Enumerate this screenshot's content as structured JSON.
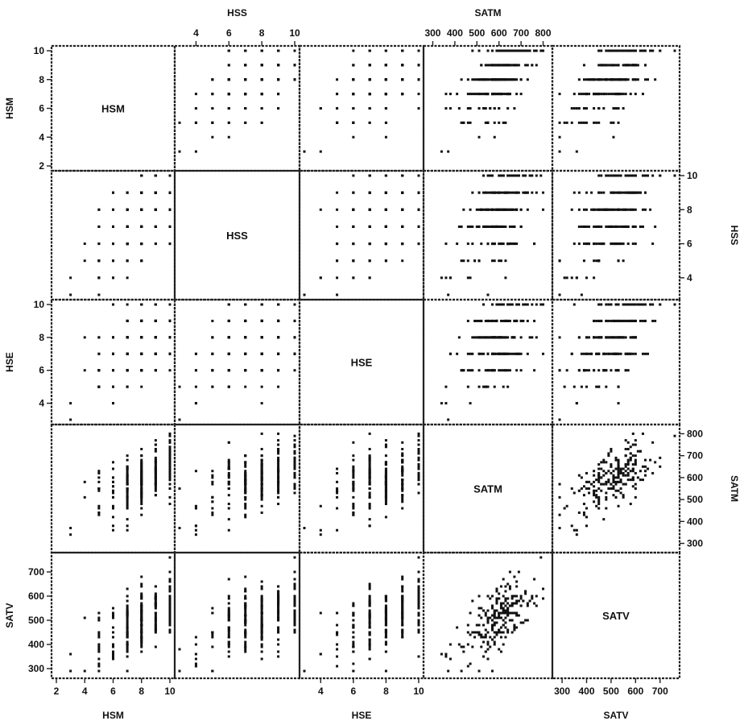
{
  "chart_data": {
    "type": "scatter",
    "subtype": "scatterplot-matrix",
    "variables": [
      "HSM",
      "HSS",
      "HSE",
      "SATM",
      "SATV"
    ],
    "diagonal_labels": [
      "HSM",
      "HSS",
      "HSE",
      "SATM",
      "SATV"
    ],
    "ranges": {
      "HSM": [
        2,
        10
      ],
      "HSS": [
        3,
        10
      ],
      "HSE": [
        3,
        10
      ],
      "SATM": [
        280,
        820
      ],
      "SATV": [
        280,
        760
      ]
    },
    "ticks": {
      "HSM": [
        "2",
        "4",
        "6",
        "8",
        "10"
      ],
      "HSS": [
        "4",
        "6",
        "8",
        "10"
      ],
      "HSE": [
        "4",
        "6",
        "8",
        "10"
      ],
      "SATM": [
        "300",
        "400",
        "500",
        "600",
        "700",
        "800"
      ],
      "SATV": [
        "300",
        "400",
        "500",
        "600",
        "700"
      ]
    },
    "axes_labeled": {
      "top": [
        "HSS",
        "SATM"
      ],
      "bottom": [
        "HSM",
        "HSE",
        "SATV"
      ],
      "left": [
        "HSM",
        "HSE",
        "SATV"
      ],
      "right": [
        "HSS",
        "SATM"
      ]
    },
    "n_observations": 224,
    "grid": false,
    "legend": "none",
    "marker_color": "#111111",
    "frame_color": "#222222"
  }
}
